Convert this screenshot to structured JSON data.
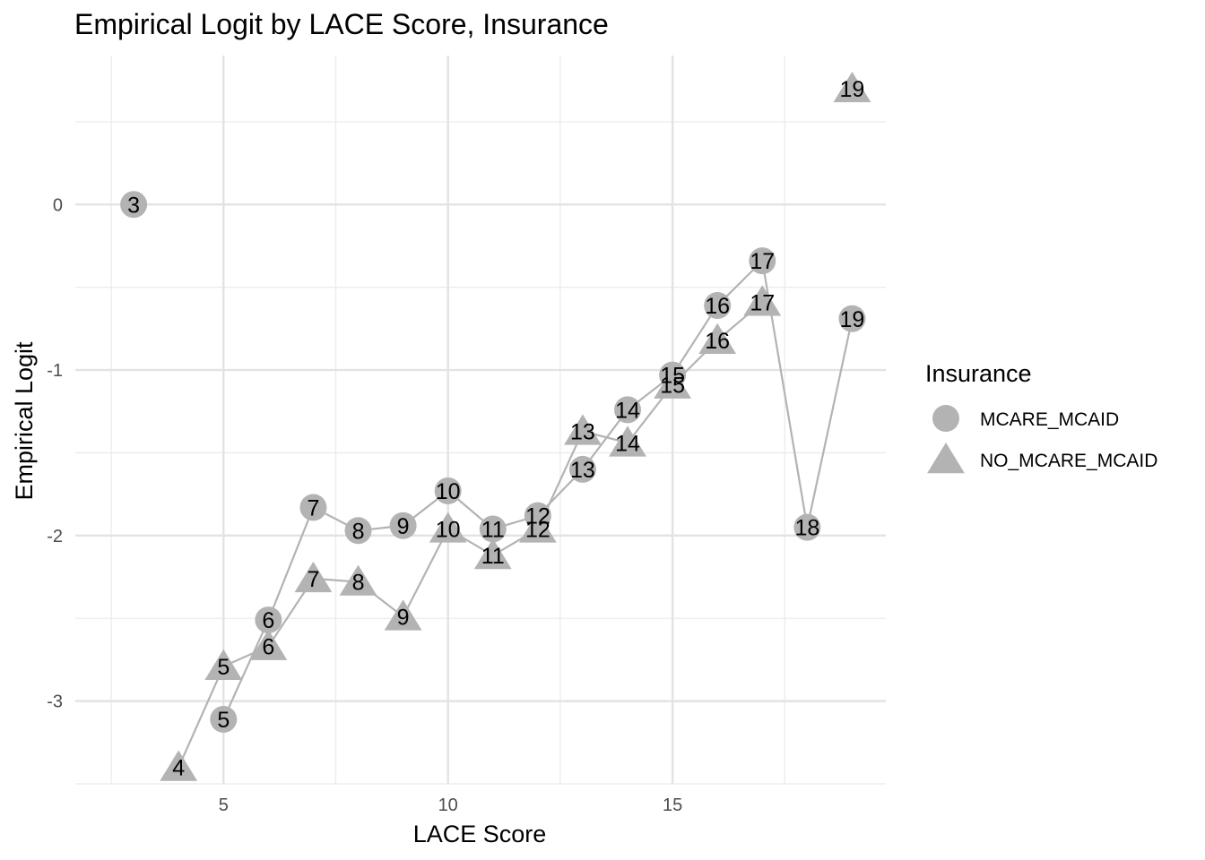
{
  "chart_data": {
    "type": "scatter",
    "title": "Empirical Logit by LACE Score, Insurance",
    "xlabel": "LACE Score",
    "ylabel": "Empirical Logit",
    "xlim": [
      1.7,
      19.75
    ],
    "ylim": [
      -3.5,
      0.9
    ],
    "x_ticks": [
      5,
      10,
      15
    ],
    "x_tick_labels": [
      "5",
      "10",
      "15"
    ],
    "y_ticks": [
      -3,
      -2,
      -1,
      0
    ],
    "y_tick_labels": [
      "-3",
      "-2",
      "-1",
      "0"
    ],
    "grid": true,
    "legend": {
      "title": "Insurance",
      "position": "right"
    },
    "point_color": "#b3b3b3",
    "series": [
      {
        "name": "MCARE_MCAID",
        "shape": "circle",
        "x": [
          3,
          5,
          6,
          7,
          8,
          9,
          10,
          11,
          12,
          13,
          14,
          15,
          16,
          17,
          18,
          19
        ],
        "y": [
          0.0,
          -3.11,
          -2.51,
          -1.83,
          -1.97,
          -1.94,
          -1.73,
          -1.96,
          -1.88,
          -1.6,
          -1.24,
          -1.03,
          -0.61,
          -0.34,
          -1.95,
          -0.69
        ],
        "labels": [
          "3",
          "5",
          "6",
          "7",
          "8",
          "9",
          "10",
          "11",
          "12",
          "13",
          "14",
          "15",
          "16",
          "17",
          "18",
          "19"
        ]
      },
      {
        "name": "NO_MCARE_MCAID",
        "shape": "triangle",
        "x": [
          4,
          5,
          6,
          7,
          8,
          9,
          10,
          11,
          12,
          13,
          14,
          15,
          16,
          17,
          19
        ],
        "y": [
          -3.4,
          -2.79,
          -2.67,
          -2.26,
          -2.28,
          -2.49,
          -1.96,
          -2.12,
          -1.96,
          -1.37,
          -1.44,
          -1.09,
          -0.82,
          -0.59,
          0.7
        ],
        "labels": [
          "4",
          "5",
          "6",
          "7",
          "8",
          "9",
          "10",
          "11",
          "12",
          "13",
          "14",
          "15",
          "16",
          "17",
          "19"
        ]
      }
    ]
  }
}
